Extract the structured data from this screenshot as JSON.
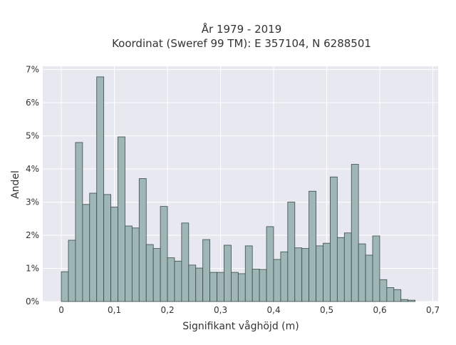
{
  "chart_data": {
    "type": "bar",
    "title": "År 1979 - 2019",
    "subtitle": "Koordinat (Sweref 99 TM): E 357104, N 6288501",
    "xlabel": "Signifikant våghöjd (m)",
    "ylabel": "Andel",
    "xlim": [
      -0.035,
      0.71
    ],
    "ylim": [
      0,
      7.1
    ],
    "x_ticks": [
      0,
      0.1,
      0.2,
      0.3,
      0.4,
      0.5,
      0.6,
      0.7
    ],
    "x_tick_labels": [
      "0",
      "0,1",
      "0,2",
      "0,3",
      "0,4",
      "0,5",
      "0,6",
      "0,7"
    ],
    "y_ticks": [
      0,
      1,
      2,
      3,
      4,
      5,
      6,
      7
    ],
    "y_tick_labels": [
      "0%",
      "1%",
      "2%",
      "3%",
      "4%",
      "5%",
      "6%",
      "7%"
    ],
    "y_unit": "percent",
    "bin_width": 0.01333,
    "bin_start": 0,
    "values": [
      0.9,
      1.85,
      4.8,
      2.93,
      3.27,
      6.78,
      3.23,
      2.85,
      4.97,
      2.28,
      2.22,
      3.71,
      1.72,
      1.6,
      2.87,
      1.32,
      1.22,
      2.37,
      1.1,
      1.01,
      1.87,
      0.88,
      0.88,
      1.7,
      0.88,
      0.84,
      1.68,
      0.98,
      0.97,
      2.26,
      1.27,
      1.5,
      3.0,
      1.62,
      1.6,
      3.33,
      1.68,
      1.76,
      3.76,
      1.93,
      2.07,
      4.14,
      1.74,
      1.4,
      1.98,
      0.66,
      0.42,
      0.36,
      0.06,
      0.04
    ],
    "grid": true,
    "colors": {
      "bar_fill": "#9fb6b6",
      "bar_stroke": "#3b4a4a",
      "plot_background": "#e8e8f0",
      "grid": "#ffffff"
    }
  }
}
